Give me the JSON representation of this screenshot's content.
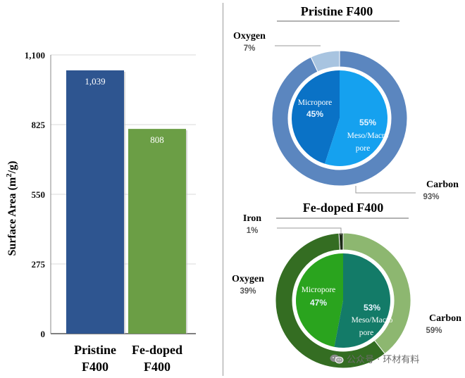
{
  "chart_data": [
    {
      "type": "bar",
      "title": "",
      "ylabel": "Surface Area (m²/g)",
      "ylabel_parts": {
        "pre": "Surface Area (m",
        "sup": "2",
        "post": "/g)"
      },
      "ylim": [
        0,
        1100
      ],
      "yticks": [
        0,
        275,
        550,
        825,
        1100
      ],
      "ytick_labels": [
        "0",
        "275",
        "550",
        "825",
        "1,100"
      ],
      "grid": true,
      "categories": [
        {
          "line1": "Pristine",
          "line2": "F400"
        },
        {
          "line1": "Fe-doped",
          "line2": "F400"
        }
      ],
      "values": [
        1039,
        808
      ],
      "value_labels": [
        "1,039",
        "808"
      ],
      "colors": [
        "#2e5590",
        "#6b9e45"
      ]
    },
    {
      "type": "pie",
      "title": "Pristine F400",
      "outer_ring": [
        {
          "name": "Oxygen",
          "value": 7,
          "label": "7%",
          "color": "#a8c4e0"
        },
        {
          "name": "Carbon",
          "value": 93,
          "label": "93%",
          "color": "#5b86bf"
        }
      ],
      "inner_pie": [
        {
          "name": "Micropore",
          "value": 45,
          "label": "45%",
          "color": "#0a72c6"
        },
        {
          "name": "Meso/Macro pore",
          "name_line1": "Meso/Macro",
          "name_line2": "pore",
          "value": 55,
          "label": "55%",
          "color": "#15a1ef"
        }
      ]
    },
    {
      "type": "pie",
      "title": "Fe-doped F400",
      "outer_ring": [
        {
          "name": "Iron",
          "value": 1,
          "label": "1%",
          "color": "#1d2b16"
        },
        {
          "name": "Oxygen",
          "value": 39,
          "label": "39%",
          "color": "#8db770"
        },
        {
          "name": "Carbon",
          "value": 59,
          "label": "59%",
          "color": "#346d22"
        }
      ],
      "inner_pie": [
        {
          "name": "Micropore",
          "value": 47,
          "label": "47%",
          "color": "#2aa41e"
        },
        {
          "name": "Meso/Macro pore",
          "name_line1": "Meso/Macro",
          "name_line2": "pore",
          "value": 53,
          "label": "53%",
          "color": "#137b68"
        }
      ]
    }
  ],
  "watermark": {
    "text": "公众号 · 环材有料",
    "icon": "wechat-icon"
  }
}
